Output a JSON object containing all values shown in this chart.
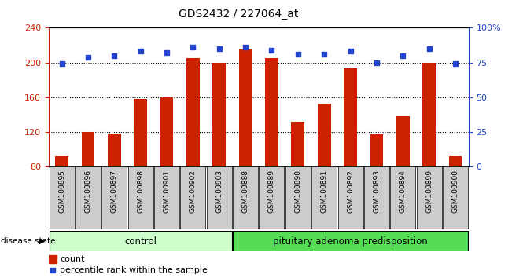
{
  "title": "GDS2432 / 227064_at",
  "categories": [
    "GSM100895",
    "GSM100896",
    "GSM100897",
    "GSM100898",
    "GSM100901",
    "GSM100902",
    "GSM100903",
    "GSM100888",
    "GSM100889",
    "GSM100890",
    "GSM100891",
    "GSM100892",
    "GSM100893",
    "GSM100894",
    "GSM100899",
    "GSM100900"
  ],
  "bar_values": [
    92,
    120,
    118,
    158,
    160,
    205,
    200,
    215,
    205,
    132,
    153,
    193,
    117,
    138,
    200,
    92
  ],
  "dot_values": [
    74,
    79,
    80,
    83,
    82,
    86,
    85,
    86,
    84,
    81,
    81,
    83,
    75,
    80,
    85,
    74
  ],
  "ylim_left": [
    80,
    240
  ],
  "ylim_right": [
    0,
    100
  ],
  "yticks_left": [
    80,
    120,
    160,
    200,
    240
  ],
  "yticks_right": [
    0,
    25,
    50,
    75,
    100
  ],
  "bar_color": "#cc2200",
  "dot_color": "#2244cc",
  "control_label": "control",
  "disease_label": "pituitary adenoma predisposition",
  "group_label": "disease state",
  "n_control": 7,
  "n_disease": 9,
  "legend_count": "count",
  "legend_percentile": "percentile rank within the sample",
  "control_color": "#ccffcc",
  "disease_color": "#55dd55",
  "tick_bg_color": "#cccccc"
}
